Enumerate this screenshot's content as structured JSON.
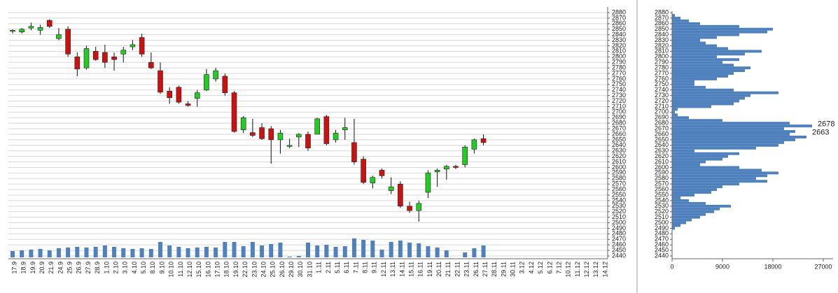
{
  "chart_data": [
    {
      "type": "candlestick",
      "categories": [
        "17.9",
        "18.9",
        "19.9",
        "20.9",
        "21.9",
        "24.9",
        "25.9",
        "26.9",
        "27.9",
        "28.9",
        "1.10",
        "2.10",
        "3.10",
        "4.10",
        "5.10",
        "8.10",
        "9.10",
        "10.10",
        "11.10",
        "12.10",
        "15.10",
        "16.10",
        "17.10",
        "18.10",
        "19.10",
        "22.10",
        "23.10",
        "24.10",
        "25.10",
        "26.10",
        "29.10",
        "30.10",
        "31.10",
        "1.11",
        "2.11",
        "5.11",
        "6.11",
        "7.11",
        "8.11",
        "9.11",
        "12.11",
        "13.11",
        "14.11",
        "15.11",
        "16.11",
        "19.11",
        "20.11",
        "21.11",
        "22.11",
        "23.11",
        "26.11",
        "27.11",
        "28.11",
        "29.11",
        "30.11",
        "3.12",
        "4.12",
        "5.12",
        "6.12",
        "7.12",
        "10.12",
        "11.12",
        "12.12",
        "13.12",
        "14.12"
      ],
      "open": [
        2846,
        2845,
        2852,
        2848,
        2866,
        2833,
        2850,
        2800,
        2780,
        2810,
        2808,
        2800,
        2805,
        2818,
        2835,
        2790,
        2775,
        2738,
        2745,
        2715,
        2725,
        2740,
        2760,
        2765,
        2735,
        2668,
        2663,
        2672,
        2670,
        2650,
        2638,
        2655,
        2660,
        2660,
        2692,
        2650,
        2668,
        2645,
        2615,
        2572,
        2595,
        2558,
        2570,
        2530,
        2522,
        2555,
        2592,
        2597,
        2602,
        2605,
        2633,
        2652,
        null,
        null,
        null,
        null,
        null,
        null,
        null,
        null,
        null,
        null,
        null,
        null,
        null
      ],
      "high": [
        2850,
        2852,
        2862,
        2858,
        2868,
        2852,
        2855,
        2808,
        2820,
        2818,
        2822,
        2808,
        2818,
        2830,
        2842,
        2808,
        2790,
        2745,
        2748,
        2720,
        2740,
        2778,
        2780,
        2770,
        2738,
        2693,
        2688,
        2680,
        2675,
        2668,
        2652,
        2662,
        2665,
        2690,
        2695,
        2668,
        2690,
        2688,
        2620,
        2585,
        2598,
        2582,
        2575,
        2538,
        2540,
        2595,
        2598,
        2605,
        2605,
        2640,
        2652,
        2660,
        null,
        null,
        null,
        null,
        null,
        null,
        null,
        null,
        null,
        null,
        null,
        null,
        null
      ],
      "low": [
        2842,
        2842,
        2848,
        2840,
        2852,
        2830,
        2800,
        2765,
        2777,
        2793,
        2780,
        2775,
        2790,
        2812,
        2800,
        2778,
        2733,
        2715,
        2715,
        2710,
        2710,
        2738,
        2755,
        2730,
        2663,
        2662,
        2655,
        2650,
        2607,
        2625,
        2635,
        2637,
        2630,
        2660,
        2640,
        2645,
        2650,
        2605,
        2570,
        2562,
        2580,
        2552,
        2527,
        2518,
        2502,
        2545,
        2565,
        2578,
        2597,
        2600,
        2625,
        2640,
        null,
        null,
        null,
        null,
        null,
        null,
        null,
        null,
        null,
        null,
        null,
        null,
        null
      ],
      "close": [
        2848,
        2850,
        2855,
        2853,
        2855,
        2840,
        2805,
        2778,
        2815,
        2795,
        2790,
        2795,
        2812,
        2822,
        2805,
        2780,
        2736,
        2726,
        2718,
        2712,
        2735,
        2768,
        2775,
        2735,
        2665,
        2690,
        2658,
        2652,
        2650,
        2662,
        2640,
        2660,
        2635,
        2688,
        2643,
        2662,
        2672,
        2610,
        2573,
        2582,
        2585,
        2565,
        2530,
        2522,
        2535,
        2590,
        2595,
        2602,
        2600,
        2637,
        2650,
        2645,
        null,
        null,
        null,
        null,
        null,
        null,
        null,
        null,
        null,
        null,
        null,
        null,
        null
      ],
      "volume": [
        9,
        10,
        11,
        12,
        10,
        13,
        14,
        15,
        14,
        15,
        17,
        15,
        13,
        12,
        13,
        12,
        22,
        17,
        15,
        13,
        14,
        15,
        14,
        22,
        22,
        16,
        22,
        17,
        19,
        21,
        1,
        2,
        21,
        17,
        18,
        15,
        16,
        27,
        25,
        24,
        11,
        22,
        24,
        21,
        20,
        16,
        14,
        10,
        null,
        7,
        13,
        17,
        null,
        null,
        null,
        null,
        null,
        null,
        null,
        null,
        null,
        null,
        null,
        null,
        null
      ],
      "up_color": "#22cc22",
      "down_color": "#cc1111",
      "volume_color": "#4f81bd",
      "ylim": [
        2440,
        2880
      ],
      "yticks": [
        2440,
        2450,
        2460,
        2470,
        2480,
        2490,
        2500,
        2510,
        2520,
        2530,
        2540,
        2550,
        2560,
        2570,
        2580,
        2590,
        2600,
        2610,
        2620,
        2630,
        2640,
        2650,
        2660,
        2670,
        2680,
        2690,
        2700,
        2710,
        2720,
        2730,
        2740,
        2750,
        2760,
        2770,
        2780,
        2790,
        2800,
        2810,
        2820,
        2830,
        2840,
        2850,
        2860,
        2870,
        2880
      ],
      "grid": true
    },
    {
      "type": "volume_profile",
      "y": [
        2490,
        2495,
        2500,
        2505,
        2510,
        2515,
        2520,
        2525,
        2530,
        2535,
        2540,
        2545,
        2550,
        2555,
        2560,
        2565,
        2570,
        2575,
        2580,
        2585,
        2590,
        2595,
        2600,
        2605,
        2610,
        2615,
        2620,
        2625,
        2630,
        2635,
        2640,
        2645,
        2650,
        2655,
        2660,
        2665,
        2670,
        2675,
        2680,
        2685,
        2690,
        2695,
        2700,
        2705,
        2710,
        2715,
        2720,
        2725,
        2730,
        2735,
        2740,
        2745,
        2750,
        2755,
        2760,
        2765,
        2770,
        2775,
        2780,
        2785,
        2790,
        2795,
        2800,
        2805,
        2810,
        2815,
        2820,
        2825,
        2830,
        2835,
        2840,
        2845,
        2850,
        2855,
        2860,
        2865,
        2870,
        2875
      ],
      "values": [
        500,
        1500,
        2500,
        3500,
        5000,
        6000,
        7500,
        8500,
        10500,
        6000,
        3000,
        1500,
        4000,
        7000,
        8000,
        9000,
        12000,
        17000,
        15000,
        17000,
        19000,
        16000,
        12000,
        5000,
        6000,
        9000,
        10000,
        12000,
        4000,
        15000,
        19000,
        20000,
        22000,
        24000,
        21000,
        22000,
        20000,
        25000,
        21000,
        9000,
        3000,
        1000,
        500,
        1000,
        7000,
        11000,
        12000,
        13000,
        14000,
        19000,
        11000,
        6000,
        4000,
        4000,
        8000,
        10000,
        11000,
        13000,
        14000,
        11000,
        9000,
        12000,
        8000,
        13000,
        16000,
        10000,
        8000,
        6000,
        5000,
        8000,
        12000,
        17000,
        18000,
        12000,
        5000,
        3000,
        1500,
        500
      ],
      "color": "#4f81bd",
      "ylim": [
        2440,
        2880
      ],
      "yticks": [
        2440,
        2450,
        2460,
        2470,
        2480,
        2490,
        2500,
        2510,
        2520,
        2530,
        2540,
        2550,
        2560,
        2570,
        2580,
        2590,
        2600,
        2610,
        2620,
        2630,
        2640,
        2650,
        2660,
        2670,
        2680,
        2690,
        2700,
        2710,
        2720,
        2730,
        2740,
        2750,
        2760,
        2770,
        2780,
        2790,
        2800,
        2810,
        2820,
        2830,
        2840,
        2850,
        2860,
        2870,
        2880
      ],
      "xlim": [
        0,
        27000
      ],
      "xticks": [
        0,
        9000,
        18000,
        27000
      ],
      "annotations": [
        2678,
        2663
      ]
    }
  ]
}
